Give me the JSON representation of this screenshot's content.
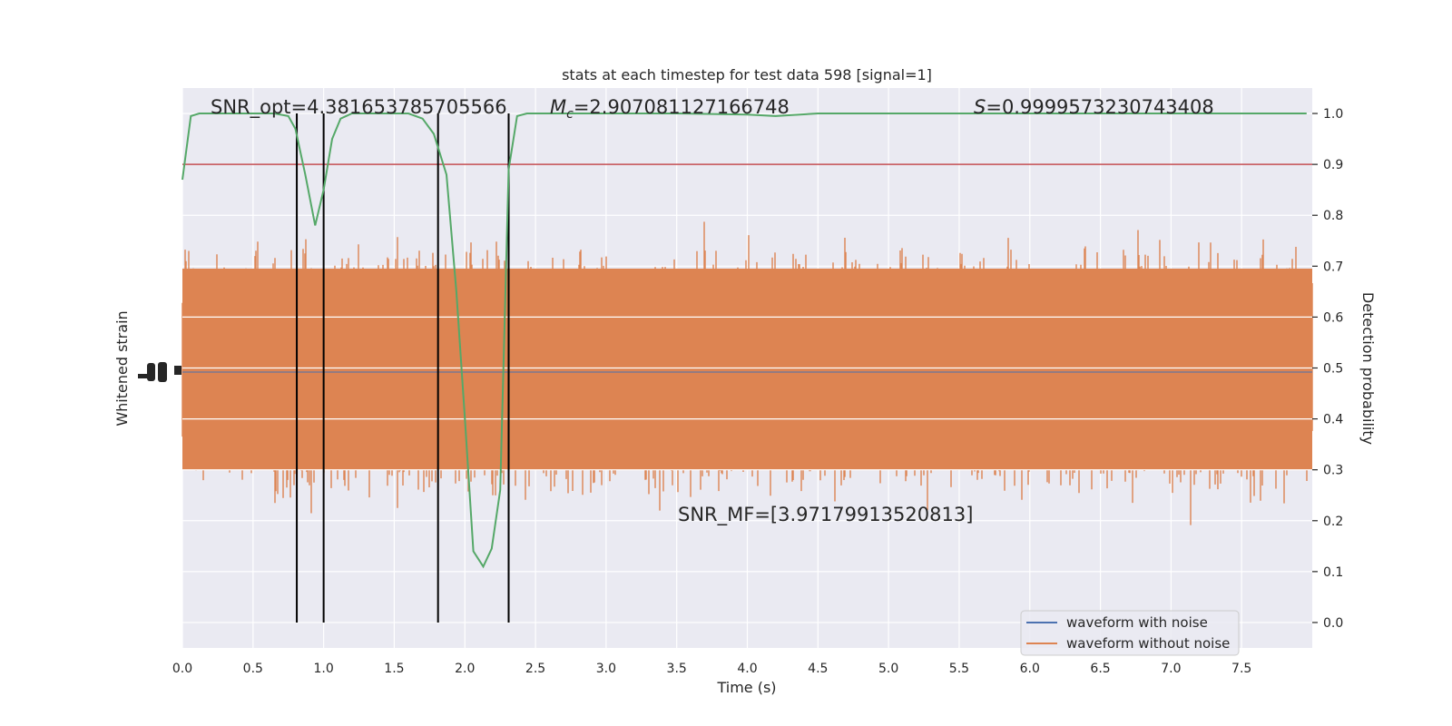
{
  "chart_data": {
    "type": "line",
    "title": "stats at each timestep for test data 598 [signal=1]",
    "xlabel": "Time (s)",
    "ylabel_left": "Whitened strain",
    "ylabel_right": "Detection probability",
    "xlim": [
      0,
      8
    ],
    "ylim_right": [
      -0.05,
      1.05
    ],
    "xticks": [
      "0.0",
      "0.5",
      "1.0",
      "1.5",
      "2.0",
      "2.5",
      "3.0",
      "3.5",
      "4.0",
      "4.5",
      "5.0",
      "5.5",
      "6.0",
      "6.5",
      "7.0",
      "7.5"
    ],
    "yticks_right": [
      "0.0",
      "0.1",
      "0.2",
      "0.3",
      "0.4",
      "0.5",
      "0.6",
      "0.7",
      "0.8",
      "0.9",
      "1.0"
    ],
    "grid": true,
    "legend_position": "lower-right",
    "annotations": {
      "snr_opt": "SNR_opt=4.381653785705566",
      "chirp_mass_symbol": "M",
      "chirp_mass_subscript": "c",
      "chirp_mass_value": "=2.907081127166748",
      "s_symbol": "S",
      "s_value": "=0.9999573230743408",
      "snr_mf": "SNR_MF=[3.97179913520813]"
    },
    "threshold": 0.9,
    "vertical_markers": [
      0.81,
      1.0,
      1.81,
      2.31
    ],
    "series": [
      {
        "name": "waveform with noise",
        "color": "#4c72b0"
      },
      {
        "name": "waveform without noise",
        "color": "#dd8452"
      }
    ],
    "detection_probability": {
      "color": "#55a868",
      "x": [
        0.0,
        0.06,
        0.12,
        0.25,
        0.4,
        0.55,
        0.65,
        0.75,
        0.8,
        0.87,
        0.94,
        1.0,
        1.06,
        1.12,
        1.2,
        1.3,
        1.45,
        1.6,
        1.7,
        1.78,
        1.87,
        1.94,
        2.0,
        2.06,
        2.13,
        2.19,
        2.25,
        2.31,
        2.37,
        2.44,
        2.6,
        3.0,
        3.5,
        4.0,
        4.2,
        4.5,
        5.0,
        6.0,
        7.0,
        7.96
      ],
      "y": [
        0.87,
        0.995,
        1.0,
        1.0,
        1.0,
        1.0,
        1.0,
        0.995,
        0.97,
        0.88,
        0.78,
        0.85,
        0.95,
        0.99,
        1.0,
        1.0,
        1.0,
        1.0,
        0.99,
        0.96,
        0.88,
        0.65,
        0.4,
        0.14,
        0.11,
        0.145,
        0.26,
        0.89,
        0.995,
        1.0,
        1.0,
        1.0,
        1.0,
        0.998,
        0.995,
        1.0,
        1.0,
        1.0,
        1.0,
        1.0
      ]
    }
  }
}
